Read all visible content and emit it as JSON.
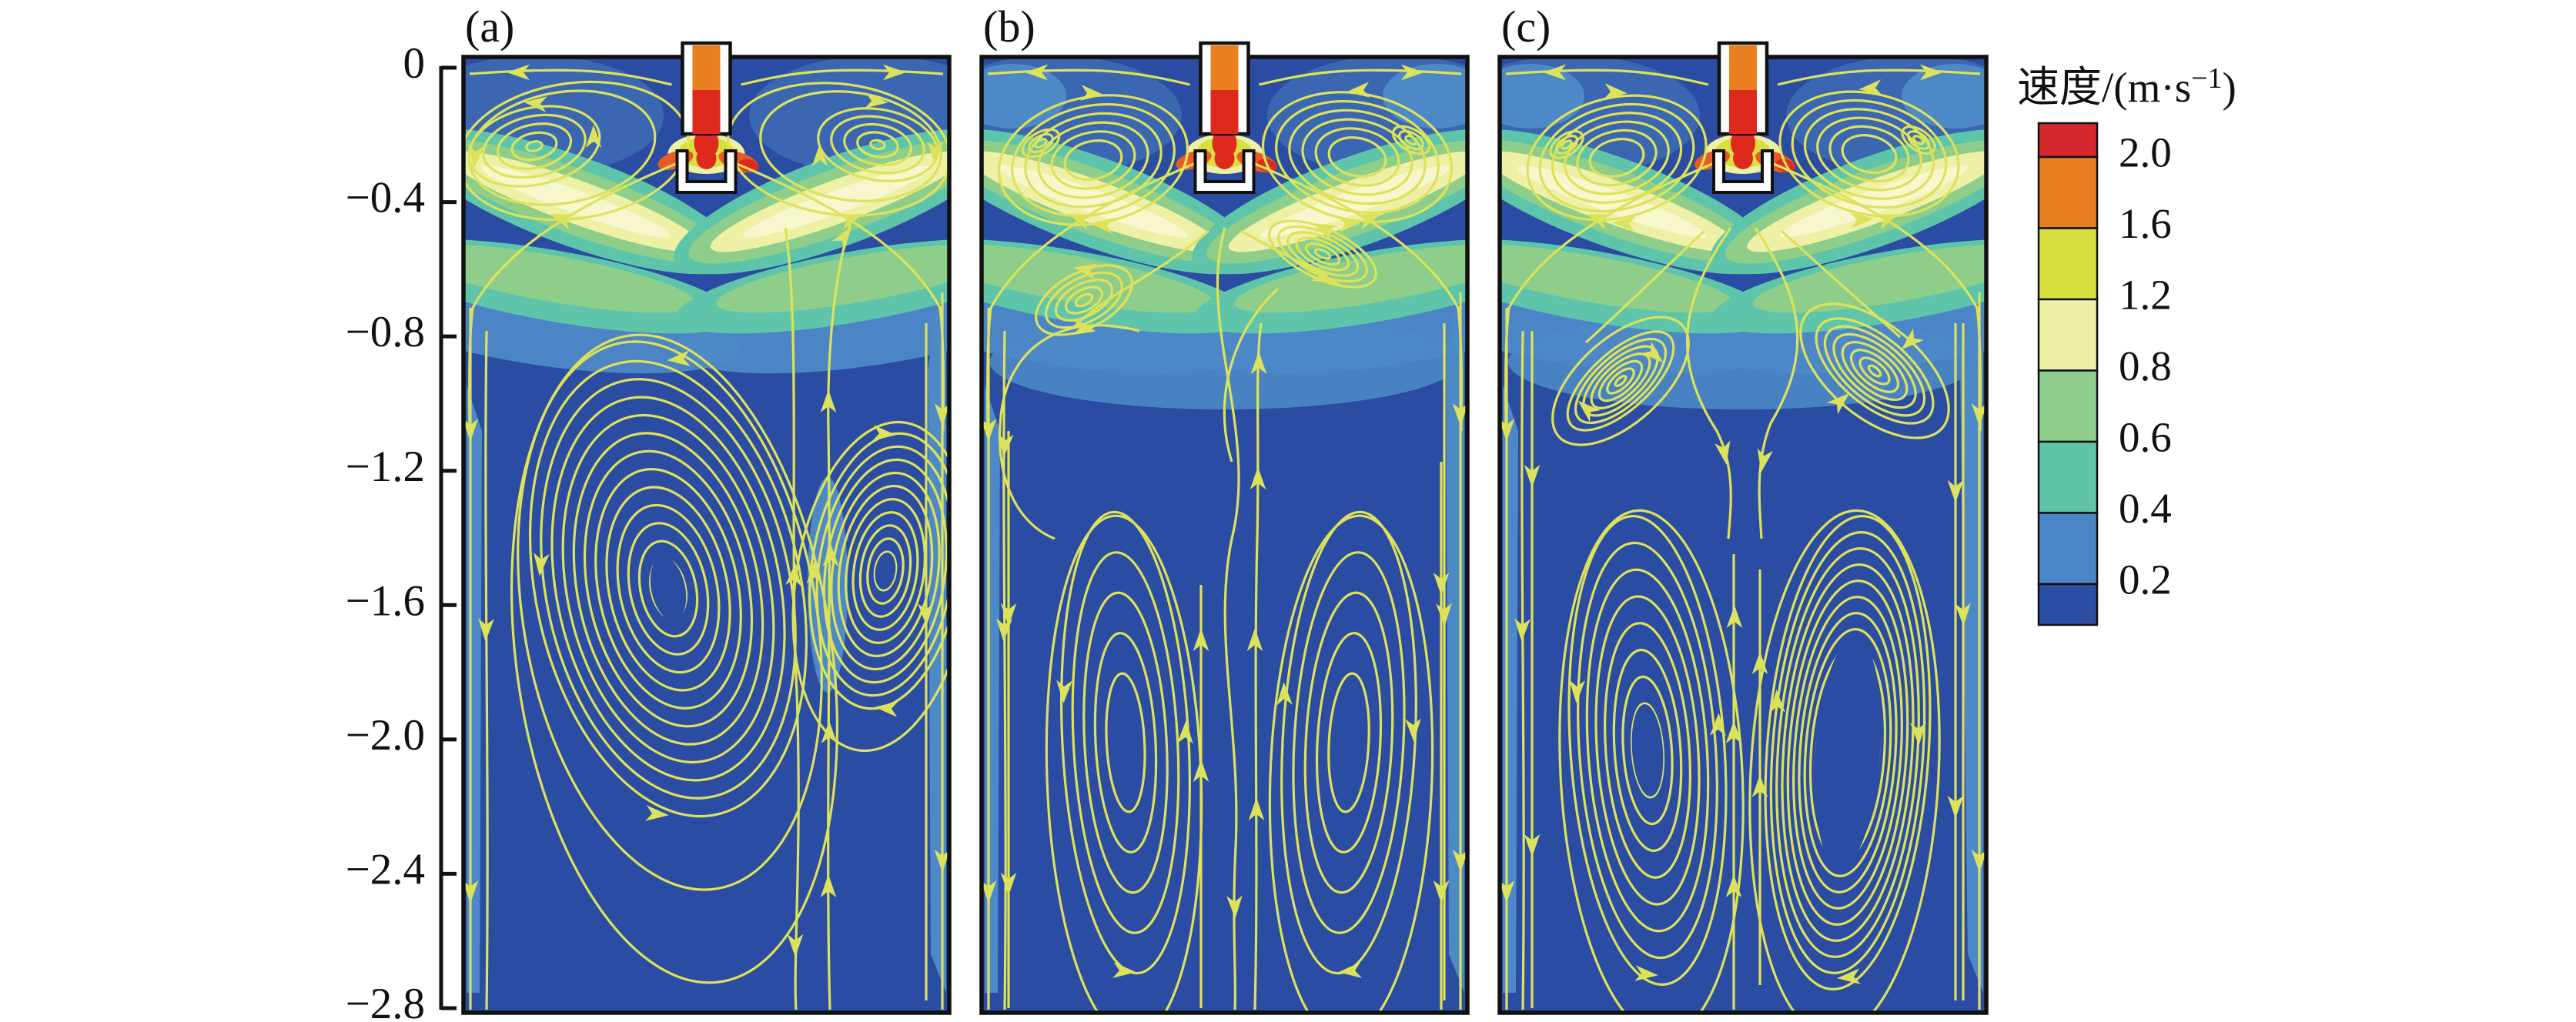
{
  "figure": {
    "background": "#ffffff",
    "panels": [
      {
        "id": "a",
        "label": "(a)"
      },
      {
        "id": "b",
        "label": "(b)"
      },
      {
        "id": "c",
        "label": "(c)"
      }
    ],
    "y_axis": {
      "ticks": [
        "0",
        "−0.4",
        "−0.8",
        "−1.2",
        "−1.6",
        "−2.0",
        "−2.4",
        "−2.8"
      ]
    },
    "colorbar": {
      "title_prefix": "速度/(m·s",
      "title_sup": "−1",
      "title_suffix": ")",
      "labels": [
        "2.0",
        "1.6",
        "1.2",
        "0.8",
        "0.6",
        "0.4",
        "0.2"
      ],
      "segment_colors_top_to_bottom": [
        "#d5282c",
        "#e87d22",
        "#d8df3e",
        "#eef0a5",
        "#8fcf8b",
        "#5fc5a9",
        "#4b86c6",
        "#2c4da4"
      ]
    },
    "flow_colors": {
      "background_blue": "#2b4ca3",
      "mid_blue": "#3a66b2",
      "light_blue": "#4d88c7",
      "teal": "#5ec5aa",
      "green": "#8fce8a",
      "pale_yellow": "#eef0a6",
      "bright_core": "#f6f7cd",
      "streamline_yellow": "#dde25b",
      "jet_orange": "#e8801f",
      "jet_red": "#de2a1c",
      "jet_orange_red": "#e85c24",
      "wall_white": "#ffffff",
      "line_black": "#111111"
    }
  },
  "chart_data": {
    "type": "heatmap",
    "subtype": "cfd-velocity-contour-with-streamlines",
    "title": "",
    "panels": [
      "(a)",
      "(b)",
      "(c)"
    ],
    "y_ticks": [
      0,
      -0.4,
      -0.8,
      -1.2,
      -1.6,
      -2.0,
      -2.4,
      -2.8
    ],
    "y_range": [
      -2.8,
      0
    ],
    "xlabel": "",
    "ylabel": "",
    "grid": false,
    "legend_position": "right",
    "colorbar": {
      "title": "速度/(m·s⁻¹)",
      "levels": [
        2.0,
        1.6,
        1.2,
        0.8,
        0.6,
        0.4,
        0.2
      ],
      "colors_top_to_bottom": [
        "#d5282c",
        "#e87d22",
        "#d8df3e",
        "#eef0a5",
        "#8fcf8b",
        "#5fc5a9",
        "#4b86c6",
        "#2c4da4"
      ]
    },
    "description": "Three vertical mold/tank cross-sections showing a central submerged nozzle jet (red/orange, ~2 m/s) impinging and spreading sideways as yellow-green plumes near y=-0.2 to -0.4; slow (<0.2 m/s) dark-blue bulk with yellow recirculation streamlines: (a) two large mid-depth vortices centered near y=-1.5, (b) butterfly loops at top with tall slender lower recirculation loops, (c) top loops plus two dense tall lower vortices near y=-1.4 to -2.6."
  }
}
